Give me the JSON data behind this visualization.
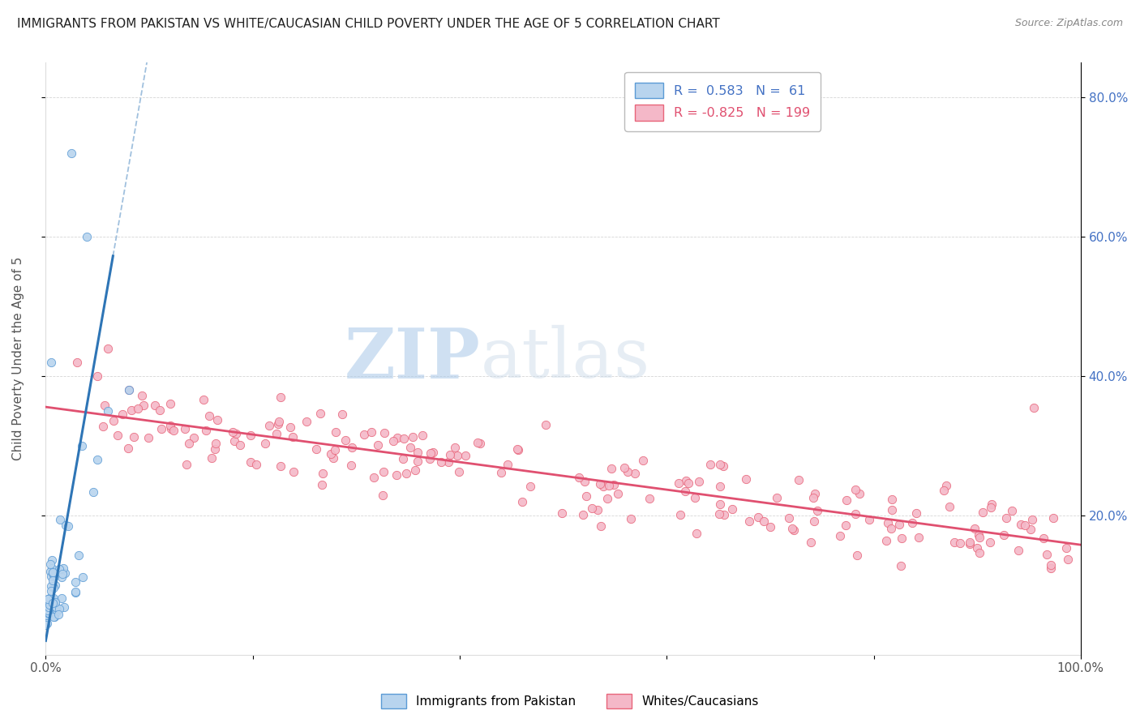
{
  "title": "IMMIGRANTS FROM PAKISTAN VS WHITE/CAUCASIAN CHILD POVERTY UNDER THE AGE OF 5 CORRELATION CHART",
  "source": "Source: ZipAtlas.com",
  "ylabel": "Child Poverty Under the Age of 5",
  "r_pakistan": 0.583,
  "n_pakistan": 61,
  "r_white": -0.825,
  "n_white": 199,
  "pakistan_color": "#b8d4ee",
  "pakistan_edge_color": "#5b9bd5",
  "pakistan_line_color": "#2e75b6",
  "white_color": "#f4b8c8",
  "white_edge_color": "#e8657a",
  "white_line_color": "#e05070",
  "watermark_zip": "ZIP",
  "watermark_atlas": "atlas",
  "legend_label_pakistan": "Immigrants from Pakistan",
  "legend_label_white": "Whites/Caucasians",
  "xlim": [
    0,
    1
  ],
  "ylim": [
    0,
    0.85
  ],
  "xticks": [
    0,
    0.2,
    0.4,
    0.6,
    0.8,
    1.0
  ],
  "xticklabels": [
    "0.0%",
    "",
    "",
    "",
    "",
    "100.0%"
  ],
  "right_ytick_vals": [
    0.2,
    0.4,
    0.6,
    0.8
  ],
  "right_ytick_labels": [
    "20.0%",
    "40.0%",
    "60.0%",
    "80.0%"
  ]
}
